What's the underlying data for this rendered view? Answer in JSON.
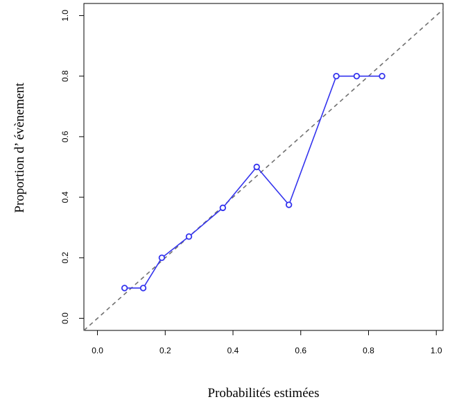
{
  "chart_data": {
    "type": "line",
    "title": "",
    "xlabel": "Probabilités estimées",
    "ylabel": "Proportion d’ évènement",
    "xlim": [
      -0.04,
      1.02
    ],
    "ylim": [
      -0.04,
      1.04
    ],
    "xticks": [
      "0.0",
      "0.2",
      "0.4",
      "0.6",
      "0.8",
      "1.0"
    ],
    "yticks": [
      "0.0",
      "0.2",
      "0.4",
      "0.6",
      "0.8",
      "1.0"
    ],
    "reference_line": {
      "from": [
        0,
        0
      ],
      "to": [
        1,
        1
      ],
      "style": "dashed",
      "color": "#707070"
    },
    "series": [
      {
        "color": "#3333ee",
        "marker": "open-circle",
        "x": [
          0.08,
          0.135,
          0.19,
          0.27,
          0.37,
          0.47,
          0.565,
          0.705,
          0.765,
          0.84
        ],
        "y": [
          0.1,
          0.1,
          0.2,
          0.27,
          0.365,
          0.5,
          0.375,
          0.8,
          0.8,
          0.8
        ]
      }
    ],
    "grid": false,
    "legend": "none"
  }
}
